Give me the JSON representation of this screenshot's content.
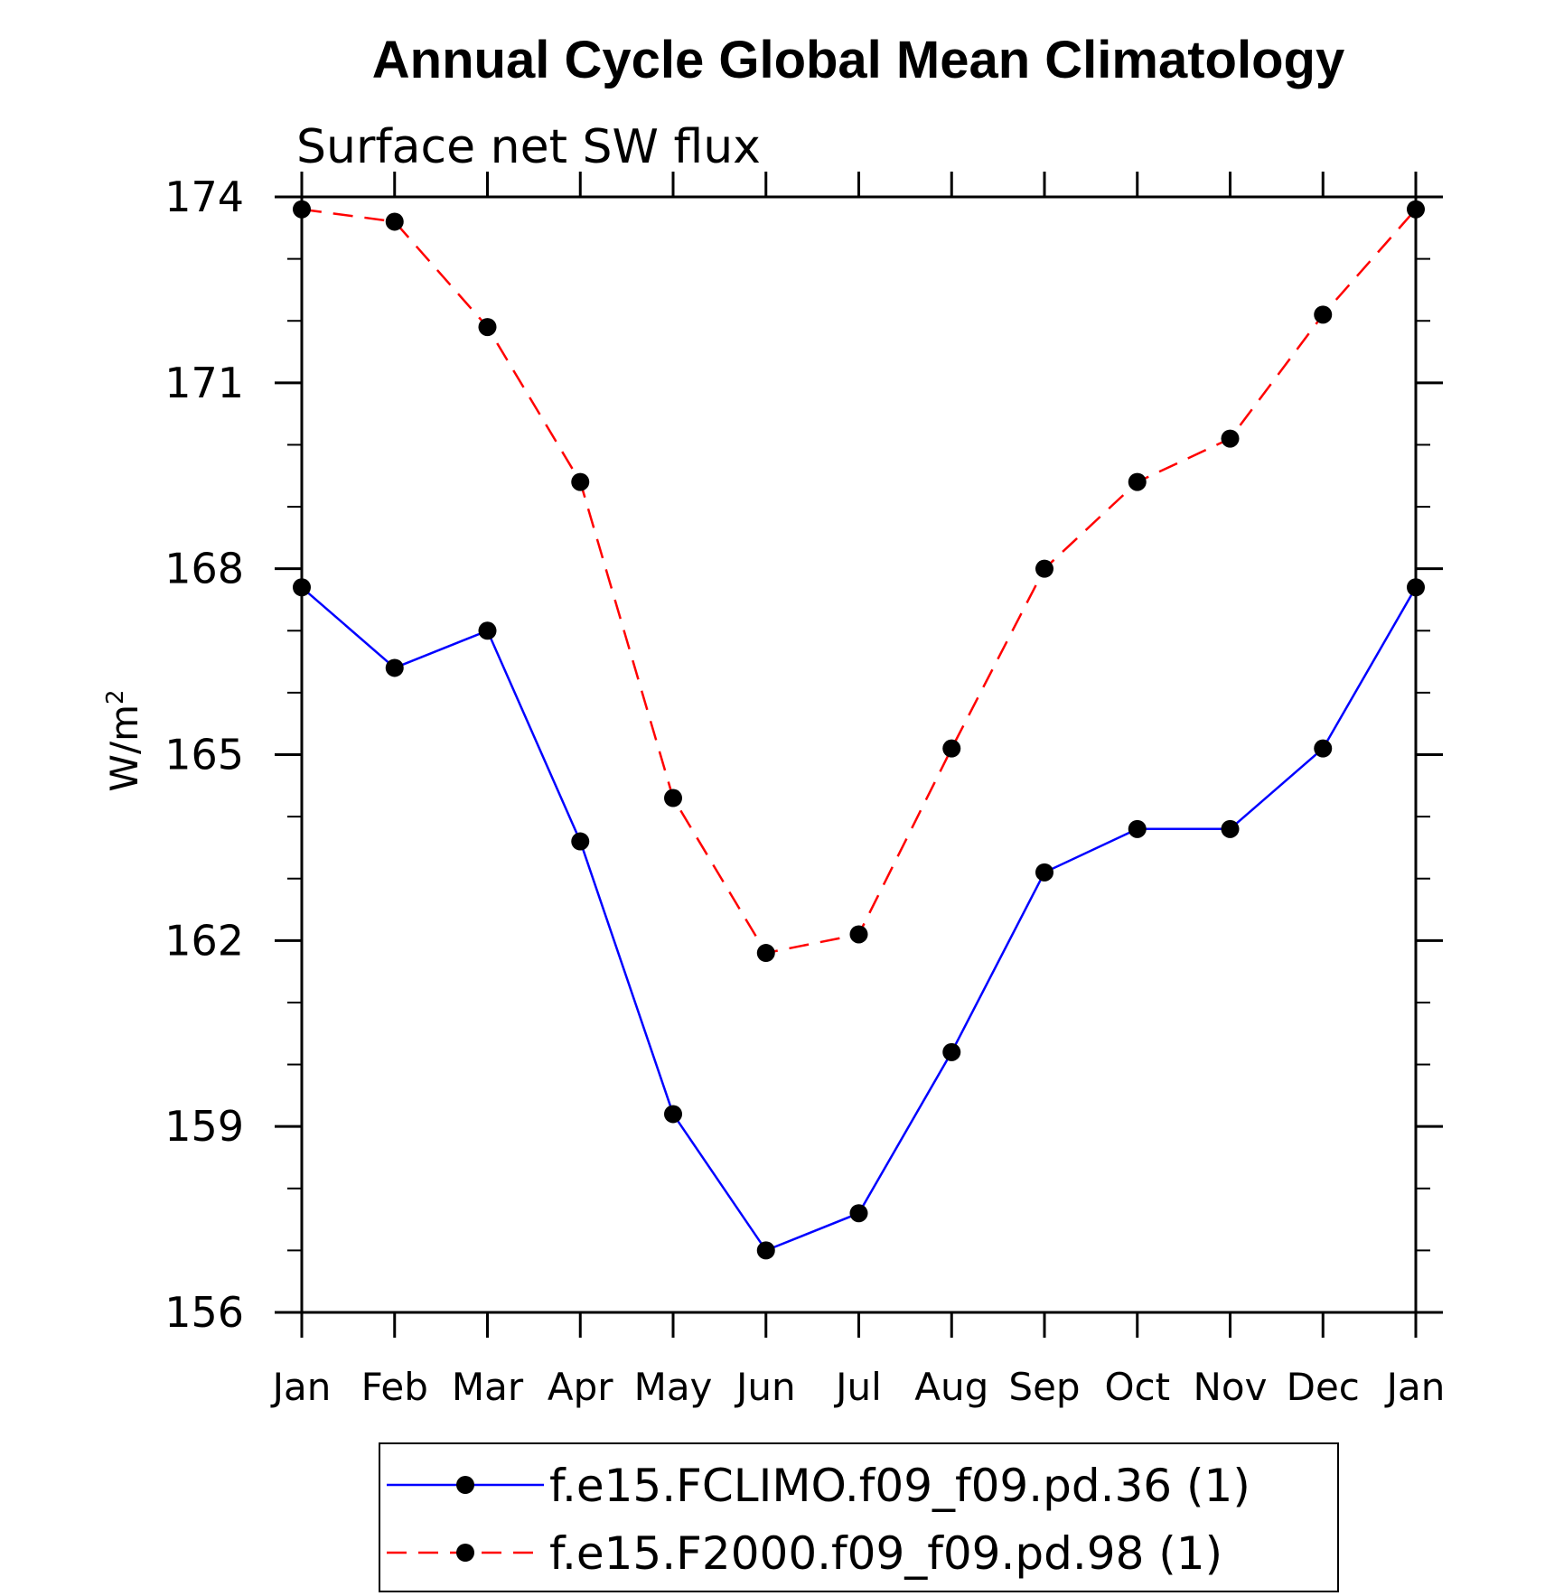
{
  "chart_data": {
    "type": "line",
    "title": "Annual Cycle Global Mean Climatology",
    "subtitle": "Surface net SW flux",
    "ylabel_base": "W/m",
    "ylabel_exp": "2",
    "categories": [
      "Jan",
      "Feb",
      "Mar",
      "Apr",
      "May",
      "Jun",
      "Jul",
      "Aug",
      "Sep",
      "Oct",
      "Nov",
      "Dec",
      "Jan"
    ],
    "ylim": [
      156,
      174
    ],
    "yticks": [
      "174",
      "171",
      "168",
      "165",
      "162",
      "159",
      "156"
    ],
    "series": [
      {
        "name": "f.e15.FCLIMO.f09_f09.pd.36 (1)",
        "color": "#0000ff",
        "dash": "solid",
        "values": [
          167.7,
          166.4,
          167.0,
          163.6,
          159.2,
          157.0,
          157.6,
          160.2,
          163.1,
          163.8,
          163.8,
          165.1,
          167.7
        ]
      },
      {
        "name": "f.e15.F2000.f09_f09.pd.98 (1)",
        "color": "#ff0000",
        "dash": "dashed",
        "values": [
          173.8,
          173.6,
          171.9,
          169.4,
          164.3,
          161.8,
          162.1,
          165.1,
          168.0,
          169.4,
          170.1,
          172.1,
          173.8
        ]
      }
    ],
    "legend_position": "bottom"
  }
}
